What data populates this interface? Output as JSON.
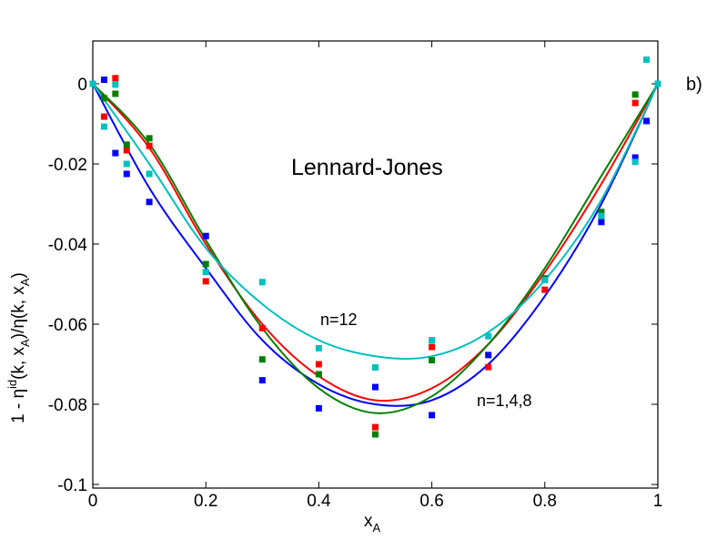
{
  "chart_data": {
    "type": "scatter",
    "panel_label": "b)",
    "xlabel": "x",
    "xlabel_sub": "A",
    "ylabel_parts": [
      "1 - η",
      "id",
      "(k, x",
      "A",
      ")/η(k, x",
      "A",
      ")"
    ],
    "xlim": [
      0,
      1
    ],
    "ylim": [
      -0.1,
      0.01
    ],
    "xticks": [
      0,
      0.2,
      0.4,
      0.6,
      0.8,
      1
    ],
    "xtick_labels": [
      "0",
      "0.2",
      "0.4",
      "0.6",
      "0.8",
      "1"
    ],
    "yticks": [
      0,
      -0.02,
      -0.04,
      -0.06,
      -0.08,
      -0.1
    ],
    "ytick_labels": [
      "0",
      "-0.02",
      "-0.04",
      "-0.06",
      "-0.08",
      "-0.1"
    ],
    "grid": false,
    "annotations": [
      {
        "text": "Lennard-Jones",
        "x": 0.48,
        "y": -0.021
      },
      {
        "text": "n=12",
        "x": 0.44,
        "y": -0.059
      },
      {
        "text": "n=1,4,8",
        "x": 0.68,
        "y": -0.08
      }
    ],
    "series": [
      {
        "color": "#0000ff",
        "points": [
          [
            0,
            0
          ],
          [
            0.02,
            0.001
          ],
          [
            0.04,
            -0.0173
          ],
          [
            0.06,
            -0.0225
          ],
          [
            0.1,
            -0.0295
          ],
          [
            0.2,
            -0.038
          ],
          [
            0.3,
            -0.074
          ],
          [
            0.4,
            -0.081
          ],
          [
            0.5,
            -0.0757
          ],
          [
            0.6,
            -0.0827
          ],
          [
            0.7,
            -0.0677
          ],
          [
            0.8,
            -0.0486
          ],
          [
            0.9,
            -0.0345
          ],
          [
            0.96,
            -0.0184
          ],
          [
            0.98,
            -0.0093
          ],
          [
            1,
            0
          ]
        ],
        "curve": [
          [
            0,
            0
          ],
          [
            0.1,
            -0.026
          ],
          [
            0.2,
            -0.046
          ],
          [
            0.3,
            -0.064
          ],
          [
            0.4,
            -0.075
          ],
          [
            0.5,
            -0.08
          ],
          [
            0.6,
            -0.079
          ],
          [
            0.7,
            -0.07
          ],
          [
            0.8,
            -0.053
          ],
          [
            0.9,
            -0.03
          ],
          [
            1,
            0
          ]
        ]
      },
      {
        "color": "#ff0000",
        "points": [
          [
            0,
            0
          ],
          [
            0.02,
            -0.0082
          ],
          [
            0.04,
            0.0014
          ],
          [
            0.06,
            -0.0166
          ],
          [
            0.1,
            -0.0155
          ],
          [
            0.2,
            -0.0493
          ],
          [
            0.3,
            -0.061
          ],
          [
            0.4,
            -0.07
          ],
          [
            0.5,
            -0.0857
          ],
          [
            0.6,
            -0.0657
          ],
          [
            0.7,
            -0.0707
          ],
          [
            0.8,
            -0.0514
          ],
          [
            0.9,
            -0.033
          ],
          [
            0.96,
            -0.0048
          ],
          [
            1,
            0
          ]
        ],
        "curve": [
          [
            0,
            0
          ],
          [
            0.1,
            -0.016
          ],
          [
            0.2,
            -0.04
          ],
          [
            0.3,
            -0.06
          ],
          [
            0.4,
            -0.073
          ],
          [
            0.5,
            -0.079
          ],
          [
            0.6,
            -0.076
          ],
          [
            0.7,
            -0.065
          ],
          [
            0.8,
            -0.047
          ],
          [
            0.9,
            -0.025
          ],
          [
            1,
            0
          ]
        ]
      },
      {
        "color": "#008000",
        "points": [
          [
            0,
            0
          ],
          [
            0.02,
            -0.0036
          ],
          [
            0.04,
            -0.0025
          ],
          [
            0.06,
            -0.0152
          ],
          [
            0.1,
            -0.0136
          ],
          [
            0.2,
            -0.045
          ],
          [
            0.3,
            -0.0688
          ],
          [
            0.4,
            -0.0725
          ],
          [
            0.5,
            -0.0875
          ],
          [
            0.6,
            -0.069
          ],
          [
            0.8,
            -0.0486
          ],
          [
            0.9,
            -0.032
          ],
          [
            0.96,
            -0.0027
          ],
          [
            1,
            0
          ]
        ],
        "curve": [
          [
            0,
            0
          ],
          [
            0.1,
            -0.015
          ],
          [
            0.2,
            -0.039
          ],
          [
            0.3,
            -0.061
          ],
          [
            0.4,
            -0.076
          ],
          [
            0.5,
            -0.0822
          ],
          [
            0.6,
            -0.078
          ],
          [
            0.7,
            -0.065
          ],
          [
            0.8,
            -0.046
          ],
          [
            0.9,
            -0.023
          ],
          [
            1,
            0
          ]
        ]
      },
      {
        "color": "#00c0c0",
        "points": [
          [
            0,
            0
          ],
          [
            0.02,
            -0.0107
          ],
          [
            0.04,
            -0.0002
          ],
          [
            0.06,
            -0.02
          ],
          [
            0.1,
            -0.0225
          ],
          [
            0.2,
            -0.047
          ],
          [
            0.3,
            -0.0495
          ],
          [
            0.4,
            -0.066
          ],
          [
            0.5,
            -0.0708
          ],
          [
            0.6,
            -0.064
          ],
          [
            0.7,
            -0.063
          ],
          [
            0.8,
            -0.049
          ],
          [
            0.9,
            -0.033
          ],
          [
            0.96,
            -0.0195
          ],
          [
            0.98,
            0.006
          ],
          [
            1,
            0
          ]
        ],
        "curve": [
          [
            0,
            0
          ],
          [
            0.1,
            -0.02
          ],
          [
            0.2,
            -0.041
          ],
          [
            0.3,
            -0.055
          ],
          [
            0.4,
            -0.064
          ],
          [
            0.5,
            -0.068
          ],
          [
            0.6,
            -0.068
          ],
          [
            0.7,
            -0.062
          ],
          [
            0.8,
            -0.049
          ],
          [
            0.9,
            -0.029
          ],
          [
            1,
            0
          ]
        ]
      }
    ]
  }
}
